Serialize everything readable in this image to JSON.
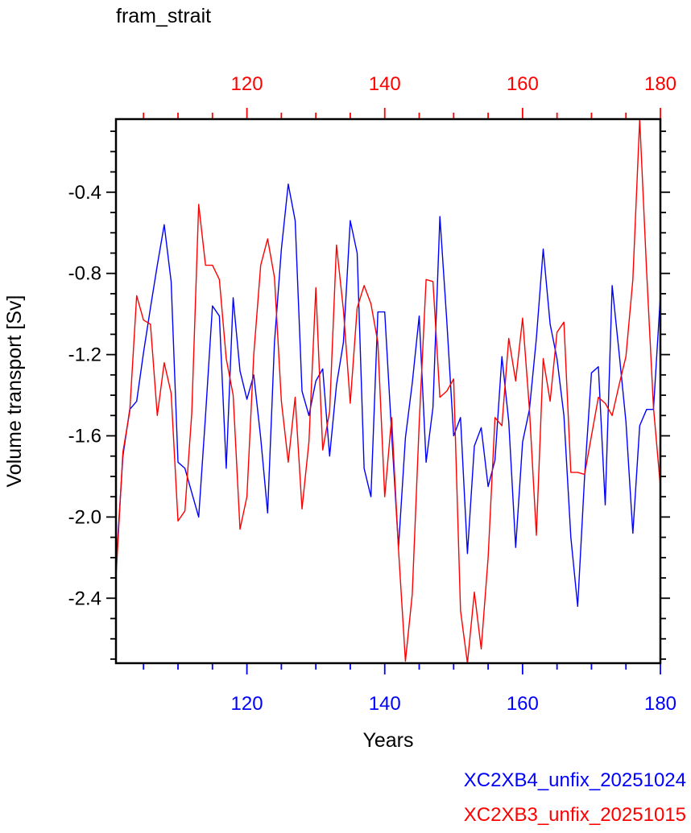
{
  "chart_data": {
    "type": "line",
    "title": "fram_strait",
    "xlabel": "Years",
    "ylabel": "Volume transport [Sv]",
    "xlim": [
      101,
      180
    ],
    "ylim": [
      -2.72,
      -0.04
    ],
    "y_ticks": [
      "-0.4",
      "-0.8",
      "-1.2",
      "-1.6",
      "-2.0",
      "-2.4"
    ],
    "y_tick_values": [
      -0.4,
      -0.8,
      -1.2,
      -1.6,
      -2.0,
      -2.4
    ],
    "x_ticks": [
      "120",
      "140",
      "160",
      "180"
    ],
    "x_tick_values": [
      120,
      140,
      160,
      180
    ],
    "x_minor_step": 5,
    "y_minor_step": 0.1,
    "colors": {
      "blue_series": "#0000ff",
      "red_series": "#ff0000"
    },
    "series": [
      {
        "name": "XC2XB4_unfix_20251024",
        "color": "#0000ff",
        "x": [
          101,
          102,
          103,
          104,
          105,
          106,
          107,
          108,
          109,
          110,
          111,
          112,
          113,
          114,
          115,
          116,
          117,
          118,
          119,
          120,
          121,
          122,
          123,
          124,
          125,
          126,
          127,
          128,
          129,
          130,
          131,
          132,
          133,
          134,
          135,
          136,
          137,
          138,
          139,
          140,
          141,
          142,
          143,
          144,
          145,
          146,
          147,
          148,
          149,
          150,
          151,
          152,
          153,
          154,
          155,
          156,
          157,
          158,
          159,
          160,
          161,
          162,
          163,
          164,
          165,
          166,
          167,
          168,
          169,
          170,
          171,
          172,
          173,
          174,
          175,
          176,
          177,
          178,
          179,
          180
        ],
        "values": [
          -2.25,
          -1.7,
          -1.47,
          -1.43,
          -1.19,
          -0.97,
          -0.76,
          -0.56,
          -0.84,
          -1.73,
          -1.76,
          -1.88,
          -2.0,
          -1.5,
          -0.96,
          -1.01,
          -1.76,
          -0.92,
          -1.28,
          -1.42,
          -1.3,
          -1.61,
          -1.98,
          -1.14,
          -0.68,
          -0.36,
          -0.54,
          -1.38,
          -1.5,
          -1.33,
          -1.27,
          -1.7,
          -1.35,
          -1.14,
          -0.54,
          -0.7,
          -1.76,
          -1.9,
          -0.99,
          -0.99,
          -1.59,
          -2.15,
          -1.61,
          -1.34,
          -1.01,
          -1.73,
          -1.46,
          -0.52,
          -1.03,
          -1.6,
          -1.51,
          -2.18,
          -1.65,
          -1.56,
          -1.85,
          -1.72,
          -1.21,
          -1.53,
          -2.15,
          -1.63,
          -1.47,
          -1.12,
          -0.68,
          -1.05,
          -1.22,
          -1.5,
          -2.1,
          -2.44,
          -1.8,
          -1.29,
          -1.26,
          -1.94,
          -0.86,
          -1.19,
          -1.53,
          -2.08,
          -1.55,
          -1.47,
          -1.47,
          -0.91
        ]
      },
      {
        "name": "XC2XB3_unfix_20251015",
        "color": "#ff0000",
        "x": [
          101,
          102,
          103,
          104,
          105,
          106,
          107,
          108,
          109,
          110,
          111,
          112,
          113,
          114,
          115,
          116,
          117,
          118,
          119,
          120,
          121,
          122,
          123,
          124,
          125,
          126,
          127,
          128,
          129,
          130,
          131,
          132,
          133,
          134,
          135,
          136,
          137,
          138,
          139,
          140,
          141,
          142,
          143,
          144,
          145,
          146,
          147,
          148,
          149,
          150,
          151,
          152,
          153,
          154,
          155,
          156,
          157,
          158,
          159,
          160,
          161,
          162,
          163,
          164,
          165,
          166,
          167,
          168,
          169,
          170,
          171,
          172,
          173,
          174,
          175,
          176,
          177,
          178,
          179,
          180
        ],
        "values": [
          -2.3,
          -1.68,
          -1.48,
          -0.91,
          -1.03,
          -1.05,
          -1.5,
          -1.24,
          -1.39,
          -2.02,
          -1.97,
          -1.49,
          -0.46,
          -0.76,
          -0.76,
          -0.83,
          -1.22,
          -1.4,
          -2.06,
          -1.9,
          -1.2,
          -0.76,
          -0.63,
          -0.82,
          -1.43,
          -1.73,
          -1.41,
          -1.96,
          -1.63,
          -0.87,
          -1.67,
          -1.48,
          -0.66,
          -0.98,
          -1.44,
          -0.97,
          -0.86,
          -0.95,
          -1.14,
          -1.9,
          -1.51,
          -2.16,
          -2.71,
          -2.38,
          -1.54,
          -0.83,
          -0.84,
          -1.41,
          -1.38,
          -1.32,
          -2.46,
          -2.72,
          -2.37,
          -2.65,
          -2.2,
          -1.51,
          -1.55,
          -1.12,
          -1.33,
          -1.02,
          -1.47,
          -2.09,
          -1.22,
          -1.43,
          -1.09,
          -1.04,
          -1.78,
          -1.78,
          -1.79,
          -1.6,
          -1.41,
          -1.44,
          -1.5,
          -1.35,
          -1.21,
          -0.83,
          -0.04,
          -0.79,
          -1.46,
          -1.85
        ]
      }
    ]
  }
}
